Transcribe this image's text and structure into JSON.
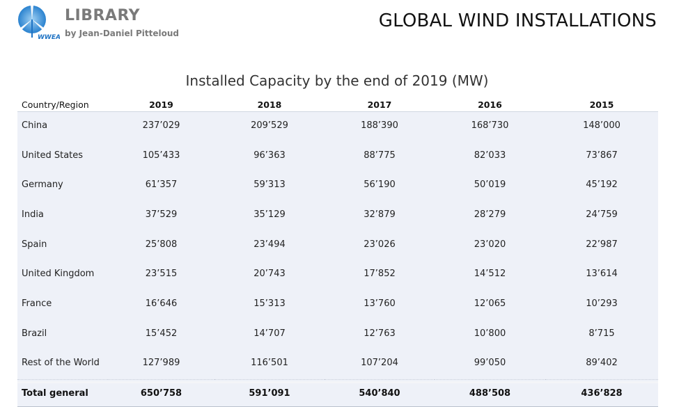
{
  "header": {
    "logo_title": "LIBRARY",
    "logo_subtitle": "by Jean-Daniel Pitteloud",
    "logo_badge": "WWEA",
    "logo_icon": "wind-turbine-icon",
    "page_title": "GLOBAL WIND INSTALLATIONS"
  },
  "table": {
    "title": "Installed Capacity by the end of 2019 (MW)",
    "columns": [
      "Country/Region",
      "2019",
      "2018",
      "2017",
      "2016",
      "2015"
    ],
    "rows": [
      {
        "country": "China",
        "values": [
          "237’029",
          "209’529",
          "188’390",
          "168’730",
          "148’000"
        ]
      },
      {
        "country": "United States",
        "values": [
          "105’433",
          "96’363",
          "88’775",
          "82’033",
          "73’867"
        ]
      },
      {
        "country": "Germany",
        "values": [
          "61’357",
          "59’313",
          "56’190",
          "50’019",
          "45’192"
        ]
      },
      {
        "country": "India",
        "values": [
          "37’529",
          "35’129",
          "32’879",
          "28’279",
          "24’759"
        ]
      },
      {
        "country": "Spain",
        "values": [
          "25’808",
          "23’494",
          "23’026",
          "23’020",
          "22’987"
        ]
      },
      {
        "country": "United Kingdom",
        "values": [
          "23’515",
          "20’743",
          "17’852",
          "14’512",
          "13’614"
        ]
      },
      {
        "country": "France",
        "values": [
          "16’646",
          "15’313",
          "13’760",
          "12’065",
          "10’293"
        ]
      },
      {
        "country": "Brazil",
        "values": [
          "15’452",
          "14’707",
          "12’763",
          "10’800",
          "8’715"
        ]
      },
      {
        "country": "Rest of the World",
        "values": [
          "127’989",
          "116’501",
          "107’204",
          "99’050",
          "89’402"
        ]
      }
    ],
    "total": {
      "label": "Total general",
      "values": [
        "650’758",
        "591’091",
        "540’840",
        "488’508",
        "436’828"
      ]
    }
  },
  "colors": {
    "row_background": "#eef1f8",
    "logo_blue": "#1f73c4",
    "logo_text_gray": "#7a7a7a"
  }
}
